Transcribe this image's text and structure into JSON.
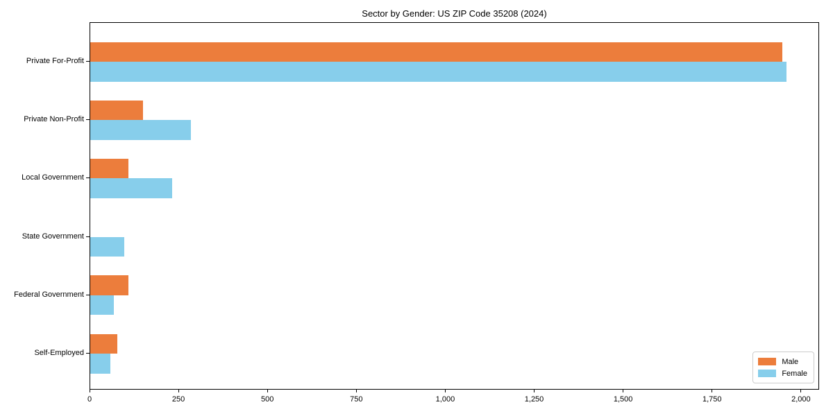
{
  "chart_data": {
    "type": "bar",
    "orientation": "horizontal",
    "title": "Sector by Gender: US ZIP Code 35208 (2024)",
    "xlabel": "",
    "ylabel": "",
    "grid": false,
    "xlim": [
      0,
      2051
    ],
    "categories": [
      "Private For-Profit",
      "Private Non-Profit",
      "Local Government",
      "State Government",
      "Federal Government",
      "Self-Employed"
    ],
    "series": [
      {
        "name": "Male",
        "color": "#ec7d3c",
        "values": [
          1950,
          148,
          107,
          0,
          107,
          76
        ]
      },
      {
        "name": "Female",
        "color": "#87ceeb",
        "values": [
          1962,
          283,
          230,
          96,
          66,
          57
        ]
      }
    ],
    "xticks": [
      {
        "value": 0,
        "label": "0"
      },
      {
        "value": 250,
        "label": "250"
      },
      {
        "value": 500,
        "label": "500"
      },
      {
        "value": 750,
        "label": "750"
      },
      {
        "value": 1000,
        "label": "1,000"
      },
      {
        "value": 1250,
        "label": "1,250"
      },
      {
        "value": 1500,
        "label": "1,500"
      },
      {
        "value": 1750,
        "label": "1,750"
      },
      {
        "value": 2000,
        "label": "2,000"
      }
    ],
    "legend": {
      "position": "lower right",
      "entries": [
        "Male",
        "Female"
      ]
    }
  }
}
